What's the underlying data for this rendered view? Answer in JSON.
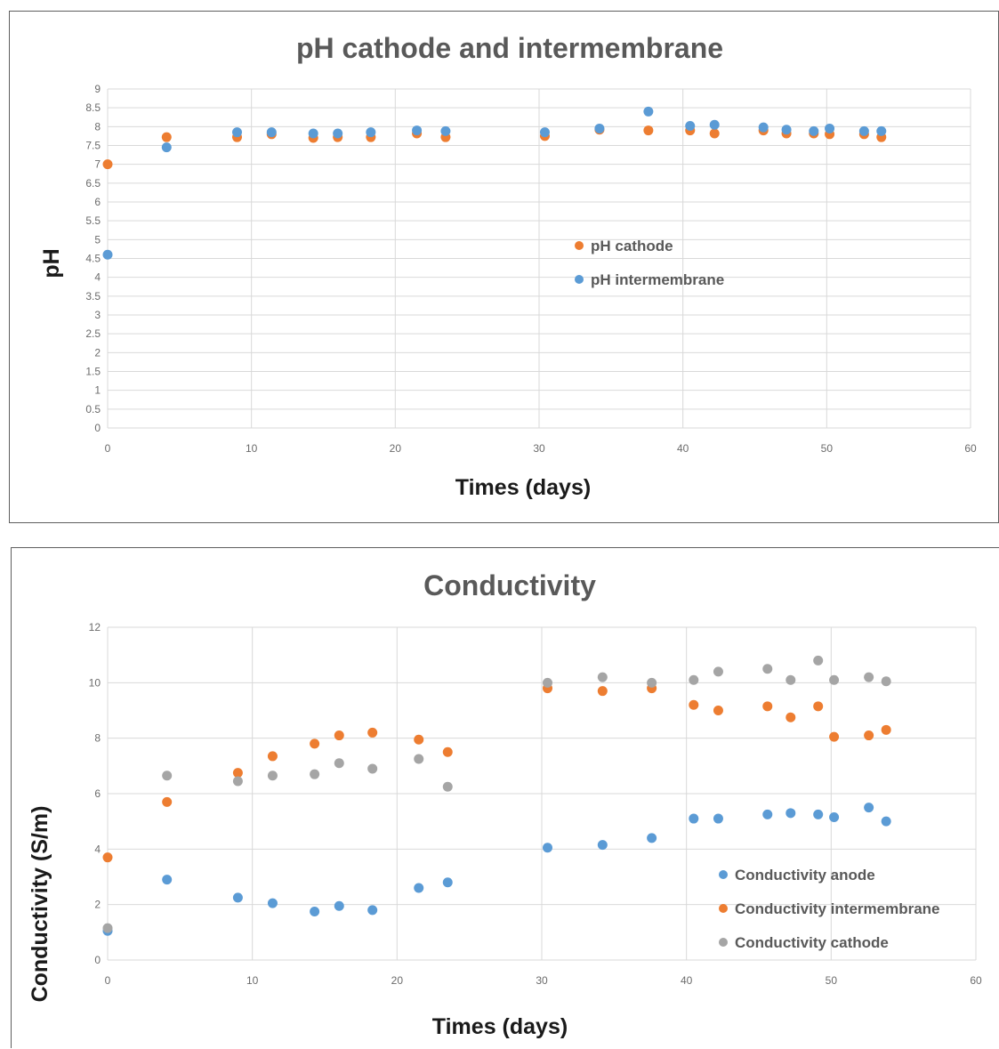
{
  "chart_data": [
    {
      "type": "scatter",
      "title": "pH cathode and intermembrane",
      "xlabel": "Times (days)",
      "ylabel": "pH",
      "xlim": [
        0,
        60
      ],
      "ylim": [
        0,
        9
      ],
      "x_ticks": [
        "0",
        "10",
        "20",
        "30",
        "40",
        "50",
        "60"
      ],
      "y_ticks": [
        "0",
        "0.5",
        "1",
        "1.5",
        "2",
        "2.5",
        "3",
        "3.5",
        "4",
        "4.5",
        "5",
        "5.5",
        "6",
        "6.5",
        "7",
        "7.5",
        "8",
        "8.5",
        "9"
      ],
      "grid": true,
      "legend_position": "center-right",
      "series": [
        {
          "name": "pH cathode",
          "color": "#ed7d31",
          "points": [
            [
              0,
              7.0
            ],
            [
              4.1,
              7.72
            ],
            [
              9,
              7.72
            ],
            [
              11.4,
              7.8
            ],
            [
              14.3,
              7.7
            ],
            [
              16,
              7.72
            ],
            [
              18.3,
              7.72
            ],
            [
              21.5,
              7.82
            ],
            [
              23.5,
              7.72
            ],
            [
              30.4,
              7.75
            ],
            [
              34.2,
              7.92
            ],
            [
              37.6,
              7.9
            ],
            [
              40.5,
              7.9
            ],
            [
              42.2,
              7.82
            ],
            [
              45.6,
              7.9
            ],
            [
              47.2,
              7.82
            ],
            [
              49.1,
              7.82
            ],
            [
              50.2,
              7.8
            ],
            [
              52.6,
              7.8
            ],
            [
              53.8,
              7.72
            ]
          ]
        },
        {
          "name": "pH intermembrane",
          "color": "#5b9bd5",
          "points": [
            [
              0,
              4.6
            ],
            [
              4.1,
              7.45
            ],
            [
              9,
              7.85
            ],
            [
              11.4,
              7.85
            ],
            [
              14.3,
              7.82
            ],
            [
              16,
              7.82
            ],
            [
              18.3,
              7.85
            ],
            [
              21.5,
              7.9
            ],
            [
              23.5,
              7.88
            ],
            [
              30.4,
              7.85
            ],
            [
              34.2,
              7.95
            ],
            [
              37.6,
              8.4
            ],
            [
              40.5,
              8.02
            ],
            [
              42.2,
              8.05
            ],
            [
              45.6,
              7.98
            ],
            [
              47.2,
              7.92
            ],
            [
              49.1,
              7.88
            ],
            [
              50.2,
              7.95
            ],
            [
              52.6,
              7.88
            ],
            [
              53.8,
              7.88
            ]
          ]
        }
      ]
    },
    {
      "type": "scatter",
      "title": "Conductivity",
      "xlabel": "Times (days)",
      "ylabel": "Conductivity (S/m)",
      "xlim": [
        0,
        60
      ],
      "ylim": [
        0,
        12
      ],
      "x_ticks": [
        "0",
        "10",
        "20",
        "30",
        "40",
        "50",
        "60"
      ],
      "y_ticks": [
        "0",
        "2",
        "4",
        "6",
        "8",
        "10",
        "12"
      ],
      "grid": true,
      "legend_position": "bottom-right",
      "series": [
        {
          "name": "Conductivity anode",
          "color": "#5b9bd5",
          "points": [
            [
              0,
              1.05
            ],
            [
              4.1,
              2.9
            ],
            [
              9,
              2.25
            ],
            [
              11.4,
              2.05
            ],
            [
              14.3,
              1.75
            ],
            [
              16,
              1.95
            ],
            [
              18.3,
              1.8
            ],
            [
              21.5,
              2.6
            ],
            [
              23.5,
              2.8
            ],
            [
              30.4,
              4.05
            ],
            [
              34.2,
              4.15
            ],
            [
              37.6,
              4.4
            ],
            [
              40.5,
              5.1
            ],
            [
              42.2,
              5.1
            ],
            [
              45.6,
              5.25
            ],
            [
              47.2,
              5.3
            ],
            [
              49.1,
              5.25
            ],
            [
              50.2,
              5.15
            ],
            [
              52.6,
              5.5
            ],
            [
              53.8,
              5.0
            ]
          ]
        },
        {
          "name": "Conductivity intermembrane",
          "color": "#ed7d31",
          "points": [
            [
              0,
              3.7
            ],
            [
              4.1,
              5.7
            ],
            [
              9,
              6.75
            ],
            [
              11.4,
              7.35
            ],
            [
              14.3,
              7.8
            ],
            [
              16,
              8.1
            ],
            [
              18.3,
              8.2
            ],
            [
              21.5,
              7.95
            ],
            [
              23.5,
              7.5
            ],
            [
              30.4,
              9.8
            ],
            [
              34.2,
              9.7
            ],
            [
              37.6,
              9.8
            ],
            [
              40.5,
              9.2
            ],
            [
              42.2,
              9.0
            ],
            [
              45.6,
              9.15
            ],
            [
              47.2,
              8.75
            ],
            [
              49.1,
              9.15
            ],
            [
              50.2,
              8.05
            ],
            [
              52.6,
              8.1
            ],
            [
              53.8,
              8.3
            ]
          ]
        },
        {
          "name": "Conductivity cathode",
          "color": "#a5a5a5",
          "points": [
            [
              0,
              1.15
            ],
            [
              4.1,
              6.65
            ],
            [
              9,
              6.45
            ],
            [
              11.4,
              6.65
            ],
            [
              14.3,
              6.7
            ],
            [
              16,
              7.1
            ],
            [
              18.3,
              6.9
            ],
            [
              21.5,
              7.25
            ],
            [
              23.5,
              6.25
            ],
            [
              30.4,
              10.0
            ],
            [
              34.2,
              10.2
            ],
            [
              37.6,
              10.0
            ],
            [
              40.5,
              10.1
            ],
            [
              42.2,
              10.4
            ],
            [
              45.6,
              10.5
            ],
            [
              47.2,
              10.1
            ],
            [
              49.1,
              10.8
            ],
            [
              50.2,
              10.1
            ],
            [
              52.6,
              10.2
            ],
            [
              53.8,
              10.05
            ]
          ]
        }
      ]
    }
  ]
}
